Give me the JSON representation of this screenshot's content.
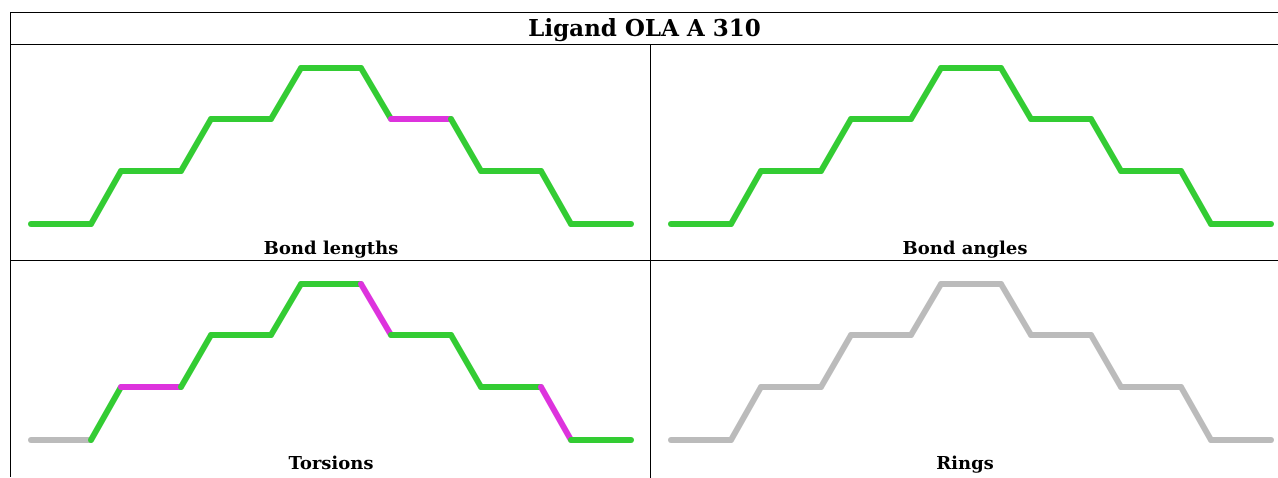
{
  "title": "Ligand OLA A 310",
  "colors": {
    "green": "#33cc33",
    "magenta": "#dd33dd",
    "grey": "#bbbbbb"
  },
  "panels": [
    {
      "caption": "Bond lengths",
      "segment_colors": [
        "green",
        "green",
        "green",
        "green",
        "green",
        "green",
        "green",
        "green",
        "magenta",
        "green",
        "green",
        "green",
        "green",
        "green",
        "green",
        "green",
        "green"
      ]
    },
    {
      "caption": "Bond angles",
      "segment_colors": [
        "green",
        "green",
        "green",
        "green",
        "green",
        "green",
        "green",
        "green",
        "green",
        "green",
        "green",
        "green",
        "green",
        "green",
        "green",
        "green",
        "green"
      ]
    },
    {
      "caption": "Torsions",
      "segment_colors": [
        "grey",
        "green",
        "magenta",
        "green",
        "green",
        "green",
        "green",
        "magenta",
        "green",
        "green",
        "green",
        "magenta",
        "green",
        "green",
        "magenta",
        "grey",
        "grey"
      ]
    },
    {
      "caption": "Rings",
      "segment_colors": [
        "grey",
        "grey",
        "grey",
        "grey",
        "grey",
        "grey",
        "grey",
        "grey",
        "grey",
        "grey",
        "grey",
        "grey",
        "grey",
        "grey",
        "grey",
        "grey",
        "grey"
      ]
    }
  ]
}
